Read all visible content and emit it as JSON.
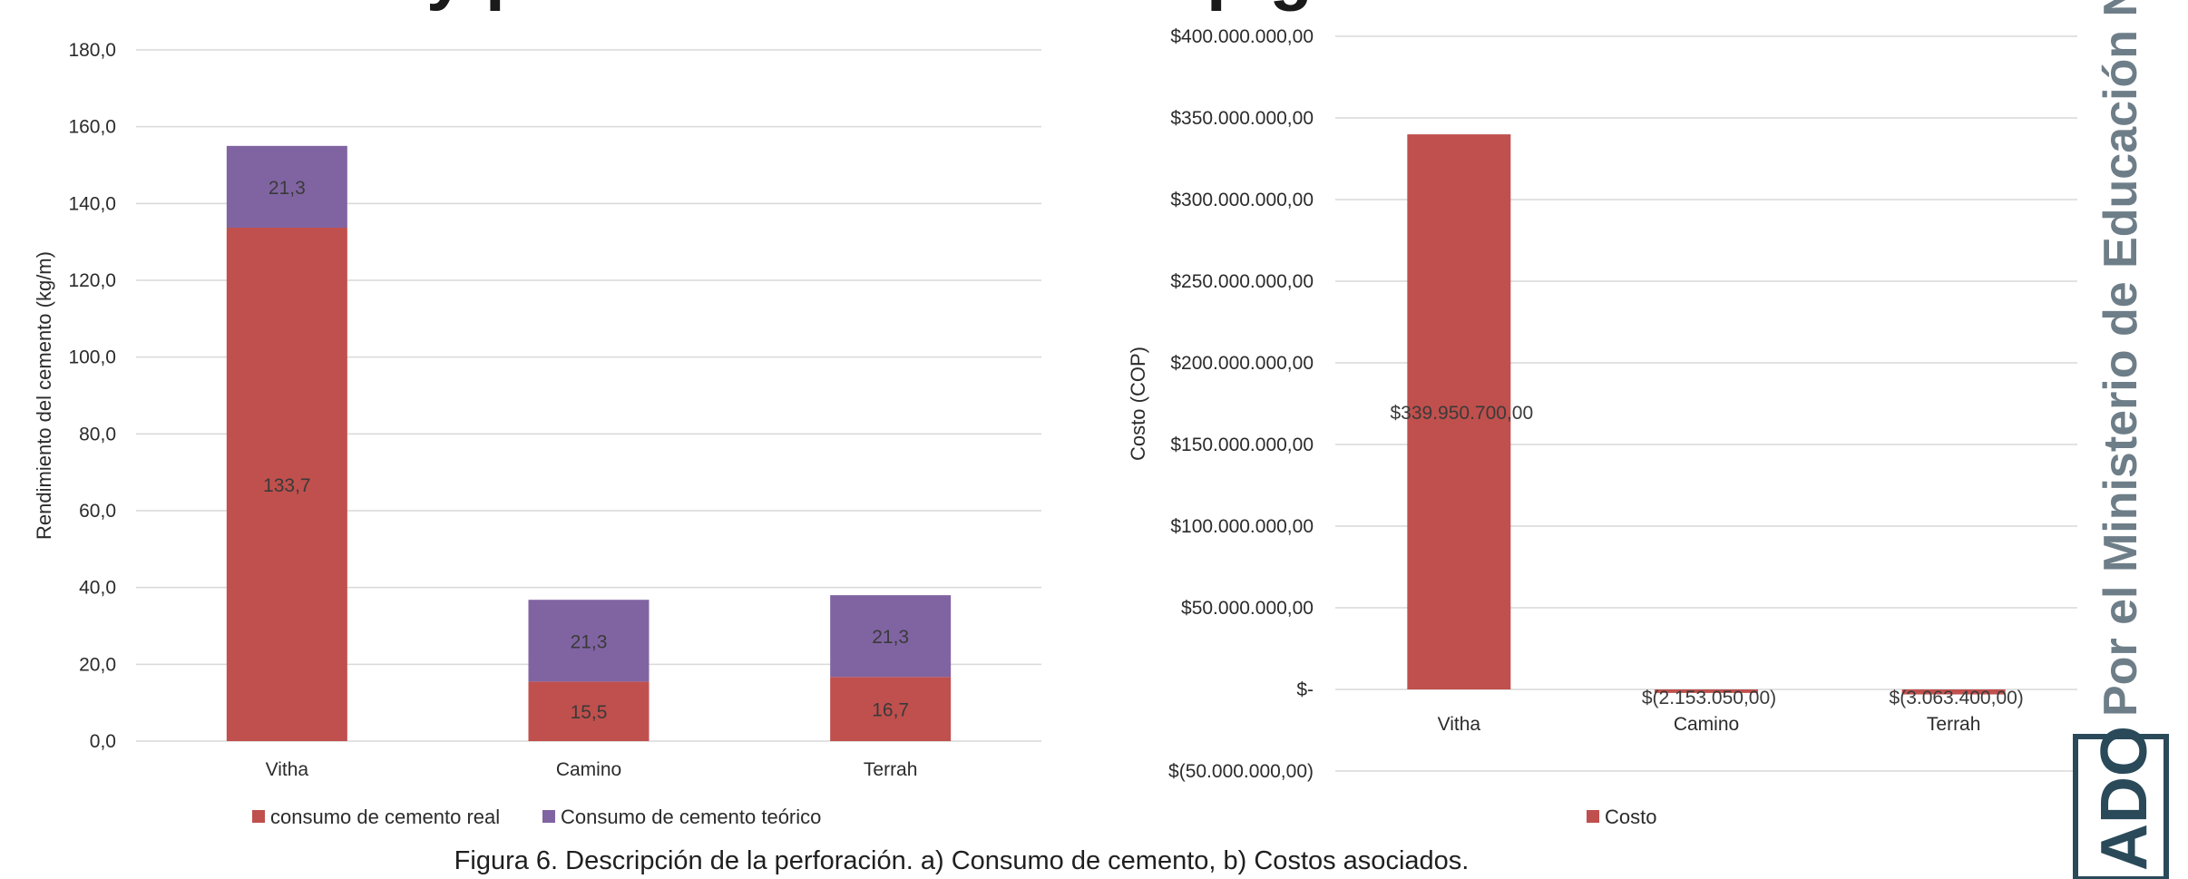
{
  "heading_fragment_left": "y   p",
  "heading_fragment_right": "p g",
  "caption": "Figura 6. Descripción de la perforación. a) Consumo de cemento, b) Costos asociados.",
  "watermark_text": "Por el Ministerio de Educación Nacion",
  "stamp_text": "ADO",
  "colors": {
    "real": "#c0504d",
    "teorico": "#8064a2",
    "grid": "#d9d9d9",
    "text": "#2b2b2b"
  },
  "chart_data": [
    {
      "type": "bar",
      "stacked": true,
      "title": "",
      "xlabel": "",
      "ylabel": "Rendimiento del cemento  (kg/m)",
      "ylim": [
        0,
        180
      ],
      "yticks": [
        "0,0",
        "20,0",
        "40,0",
        "60,0",
        "80,0",
        "100,0",
        "120,0",
        "140,0",
        "160,0",
        "180,0"
      ],
      "categories": [
        "Vitha",
        "Camino",
        "Terrah"
      ],
      "series": [
        {
          "name": "consumo de cemento real",
          "values": [
            133.7,
            15.5,
            16.7
          ],
          "labels": [
            "133,7",
            "15,5",
            "16,7"
          ],
          "color": "#c0504d"
        },
        {
          "name": "Consumo de cemento teórico",
          "values": [
            21.3,
            21.3,
            21.3
          ],
          "labels": [
            "21,3",
            "21,3",
            "21,3"
          ],
          "color": "#8064a2"
        }
      ],
      "grid": true,
      "legend_position": "bottom"
    },
    {
      "type": "bar",
      "title": "",
      "xlabel": "",
      "ylabel": "Costo  (COP)",
      "ylim": [
        -50000000,
        400000000
      ],
      "yticks": [
        "$(50.000.000,00)",
        "$-",
        "$50.000.000,00",
        "$100.000.000,00",
        "$150.000.000,00",
        "$200.000.000,00",
        "$250.000.000,00",
        "$300.000.000,00",
        "$350.000.000,00",
        "$400.000.000,00"
      ],
      "categories": [
        "Vitha",
        "Camino",
        "Terrah"
      ],
      "series": [
        {
          "name": "Costo",
          "values": [
            339950700,
            -2153050,
            -3063400
          ],
          "labels": [
            "$339.950.700,00",
            "$(2.153.050,00)",
            "$(3.063.400,00)"
          ],
          "color": "#c0504d"
        }
      ],
      "grid": true,
      "legend_position": "bottom"
    }
  ]
}
